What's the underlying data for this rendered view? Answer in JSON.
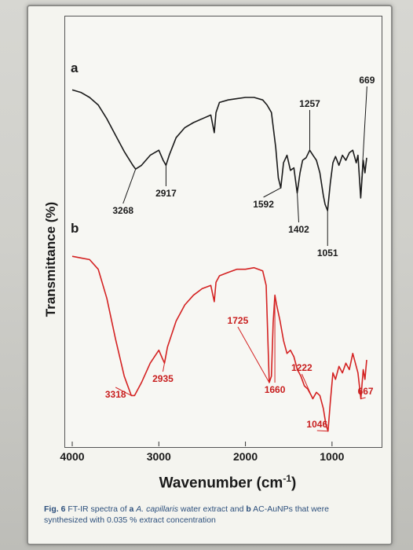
{
  "chart_data": {
    "type": "line",
    "title": "",
    "xlabel": "Wavenumber (cm",
    "xlabel_sup": "-1",
    "xlabel_close": ")",
    "ylabel": "Transmittance (%)",
    "xlim": [
      4000,
      500
    ],
    "x_ticks": [
      "4000",
      "3000",
      "2000",
      "1000"
    ],
    "x_tick_values": [
      4000,
      3000,
      2000,
      1000
    ],
    "grid": false,
    "series": [
      {
        "name": "a",
        "color": "#1a1a1a",
        "x": [
          4000,
          3900,
          3800,
          3700,
          3600,
          3500,
          3400,
          3300,
          3268,
          3200,
          3100,
          3000,
          2950,
          2917,
          2880,
          2800,
          2700,
          2600,
          2500,
          2400,
          2360,
          2340,
          2300,
          2200,
          2100,
          2000,
          1900,
          1800,
          1750,
          1700,
          1650,
          1620,
          1592,
          1560,
          1520,
          1480,
          1440,
          1402,
          1370,
          1340,
          1300,
          1257,
          1220,
          1180,
          1140,
          1100,
          1080,
          1051,
          1020,
          990,
          960,
          920,
          880,
          840,
          800,
          760,
          720,
          700,
          669,
          640,
          620,
          600
        ],
        "y": [
          0.96,
          0.94,
          0.9,
          0.84,
          0.73,
          0.6,
          0.47,
          0.36,
          0.33,
          0.36,
          0.44,
          0.48,
          0.4,
          0.36,
          0.44,
          0.58,
          0.66,
          0.7,
          0.73,
          0.76,
          0.62,
          0.78,
          0.86,
          0.88,
          0.89,
          0.9,
          0.9,
          0.88,
          0.84,
          0.78,
          0.5,
          0.26,
          0.18,
          0.38,
          0.44,
          0.32,
          0.34,
          0.14,
          0.3,
          0.4,
          0.42,
          0.48,
          0.44,
          0.4,
          0.3,
          0.12,
          0.05,
          0.0,
          0.22,
          0.38,
          0.43,
          0.36,
          0.44,
          0.4,
          0.46,
          0.48,
          0.38,
          0.44,
          0.1,
          0.4,
          0.3,
          0.42
        ]
      },
      {
        "name": "b",
        "color": "#d42222",
        "x": [
          4000,
          3900,
          3800,
          3700,
          3600,
          3500,
          3400,
          3318,
          3280,
          3200,
          3100,
          3000,
          2960,
          2935,
          2900,
          2800,
          2700,
          2600,
          2500,
          2400,
          2360,
          2340,
          2300,
          2200,
          2100,
          2000,
          1900,
          1800,
          1760,
          1725,
          1700,
          1680,
          1660,
          1640,
          1600,
          1560,
          1520,
          1480,
          1440,
          1400,
          1360,
          1320,
          1280,
          1240,
          1222,
          1180,
          1140,
          1100,
          1070,
          1046,
          1020,
          990,
          960,
          920,
          880,
          840,
          800,
          760,
          720,
          700,
          667,
          640,
          620,
          600
        ],
        "y": [
          0.96,
          0.95,
          0.94,
          0.88,
          0.7,
          0.45,
          0.22,
          0.1,
          0.1,
          0.18,
          0.3,
          0.38,
          0.33,
          0.3,
          0.4,
          0.56,
          0.66,
          0.72,
          0.76,
          0.78,
          0.68,
          0.8,
          0.84,
          0.86,
          0.88,
          0.88,
          0.89,
          0.87,
          0.78,
          0.18,
          0.22,
          0.55,
          0.72,
          0.66,
          0.56,
          0.44,
          0.36,
          0.38,
          0.34,
          0.26,
          0.22,
          0.16,
          0.14,
          0.1,
          0.08,
          0.12,
          0.1,
          0.02,
          -0.08,
          -0.12,
          0.06,
          0.24,
          0.2,
          0.28,
          0.24,
          0.3,
          0.26,
          0.36,
          0.28,
          0.24,
          0.08,
          0.26,
          0.2,
          0.32
        ]
      }
    ],
    "annotations": [
      {
        "text": "a",
        "series": "a",
        "kind": "series-tag"
      },
      {
        "text": "b",
        "series": "b",
        "kind": "series-tag"
      },
      {
        "text": "3268",
        "series": "a",
        "x": 3268
      },
      {
        "text": "2917",
        "series": "a",
        "x": 2917
      },
      {
        "text": "1592",
        "series": "a",
        "x": 1592
      },
      {
        "text": "1402",
        "series": "a",
        "x": 1402
      },
      {
        "text": "1257",
        "series": "a",
        "x": 1257
      },
      {
        "text": "1051",
        "series": "a",
        "x": 1051
      },
      {
        "text": "669",
        "series": "a",
        "x": 669
      },
      {
        "text": "3318",
        "series": "b",
        "x": 3318
      },
      {
        "text": "2935",
        "series": "b",
        "x": 2935
      },
      {
        "text": "1725",
        "series": "b",
        "x": 1725
      },
      {
        "text": "1660",
        "series": "b",
        "x": 1660
      },
      {
        "text": "1222",
        "series": "b",
        "x": 1222
      },
      {
        "text": "1046",
        "series": "b",
        "x": 1046
      },
      {
        "text": "667",
        "series": "b",
        "x": 667
      }
    ]
  },
  "caption": {
    "fig": "Fig. 6",
    "t1": " FT-IR spectra of ",
    "a": "a",
    "t2": " ",
    "species": "A. capillaris",
    "t3": " water extract and ",
    "b": "b",
    "t4": " AC-AuNPs that were synthesized with 0.035 % extract concentration"
  }
}
